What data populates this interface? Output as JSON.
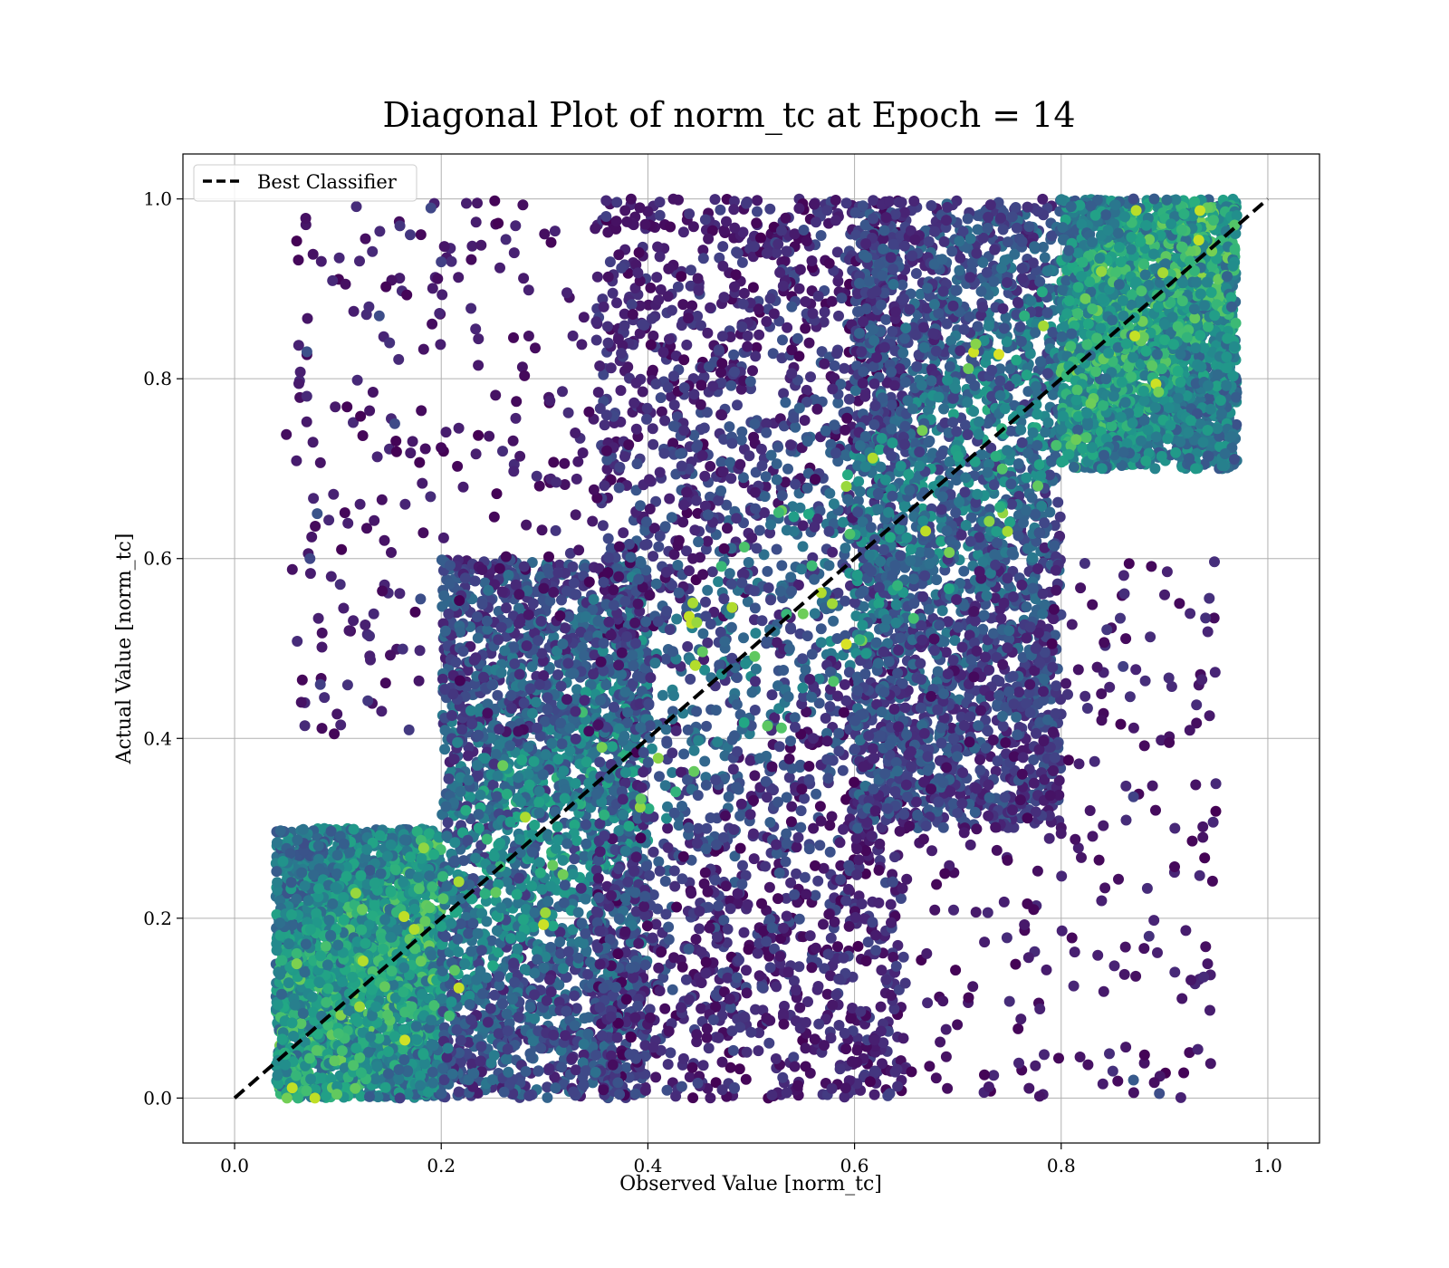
{
  "chart_data": {
    "type": "scatter",
    "title": "Diagonal Plot of norm_tc at Epoch = 14",
    "xlabel": "Observed Value [norm_tc]",
    "ylabel": "Actual Value [norm_tc]",
    "xlim": [
      -0.05,
      1.05
    ],
    "ylim": [
      -0.05,
      1.05
    ],
    "x_ticks": [
      "0.0",
      "0.2",
      "0.4",
      "0.6",
      "0.8",
      "1.0"
    ],
    "y_ticks": [
      "0.0",
      "0.2",
      "0.4",
      "0.6",
      "0.8",
      "1.0"
    ],
    "grid": true,
    "legend": {
      "placement": "upper-left",
      "entries": [
        {
          "label": "Best Classifier",
          "style": "dashed",
          "color": "#000000"
        }
      ]
    },
    "reference_line": {
      "name": "Best Classifier",
      "x": [
        0.0,
        1.0
      ],
      "y": [
        0.0,
        1.0
      ],
      "style": "dashed",
      "color": "#000000"
    },
    "colormap": "viridis",
    "point_density": [
      {
        "x_range": [
          0.04,
          0.2
        ],
        "y_range": [
          0.0,
          0.3
        ],
        "density": "very-high",
        "color_range": [
          0.3,
          0.7
        ]
      },
      {
        "x_range": [
          0.2,
          0.4
        ],
        "y_range": [
          0.0,
          0.6
        ],
        "density": "very-high",
        "color_range": [
          0.1,
          0.55
        ]
      },
      {
        "x_range": [
          0.35,
          0.65
        ],
        "y_range": [
          0.0,
          1.0
        ],
        "density": "very-high",
        "color_range": [
          0.0,
          0.4
        ]
      },
      {
        "x_range": [
          0.6,
          0.8
        ],
        "y_range": [
          0.3,
          1.0
        ],
        "density": "very-high",
        "color_range": [
          0.1,
          0.5
        ]
      },
      {
        "x_range": [
          0.8,
          0.97
        ],
        "y_range": [
          0.7,
          1.0
        ],
        "density": "very-high",
        "color_range": [
          0.3,
          0.7
        ]
      },
      {
        "x_range": [
          0.65,
          0.95
        ],
        "y_range": [
          0.0,
          0.6
        ],
        "density": "low",
        "color_range": [
          0.0,
          0.25
        ]
      },
      {
        "x_range": [
          0.05,
          0.35
        ],
        "y_range": [
          0.4,
          1.0
        ],
        "density": "low",
        "color_range": [
          0.0,
          0.25
        ]
      }
    ],
    "sample_points": [
      [
        0.07,
        0.83
      ],
      [
        0.08,
        0.65
      ],
      [
        0.073,
        0.6
      ],
      [
        0.083,
        0.46
      ],
      [
        0.13,
        0.88
      ],
      [
        0.14,
        0.87
      ],
      [
        0.15,
        0.84
      ],
      [
        0.16,
        0.97
      ],
      [
        0.17,
        0.96
      ],
      [
        0.19,
        0.99
      ],
      [
        0.2,
        0.93
      ],
      [
        0.155,
        0.75
      ],
      [
        0.56,
        0.4
      ],
      [
        0.91,
        0.3
      ],
      [
        0.91,
        0.14
      ],
      [
        0.895,
        0.005
      ],
      [
        0.87,
        0.02
      ],
      [
        0.885,
        0.18
      ],
      [
        0.85,
        0.03
      ],
      [
        0.87,
        0.335
      ],
      [
        0.965,
        0.88
      ],
      [
        0.18,
        0.555
      ],
      [
        0.16,
        0.0
      ],
      [
        0.89,
        1.0
      ],
      [
        0.87,
        1.0
      ],
      [
        0.81,
        0.85
      ],
      [
        0.62,
        0.77
      ],
      [
        0.41,
        0.53
      ],
      [
        0.33,
        0.43
      ],
      [
        0.86,
        0.48
      ]
    ]
  }
}
